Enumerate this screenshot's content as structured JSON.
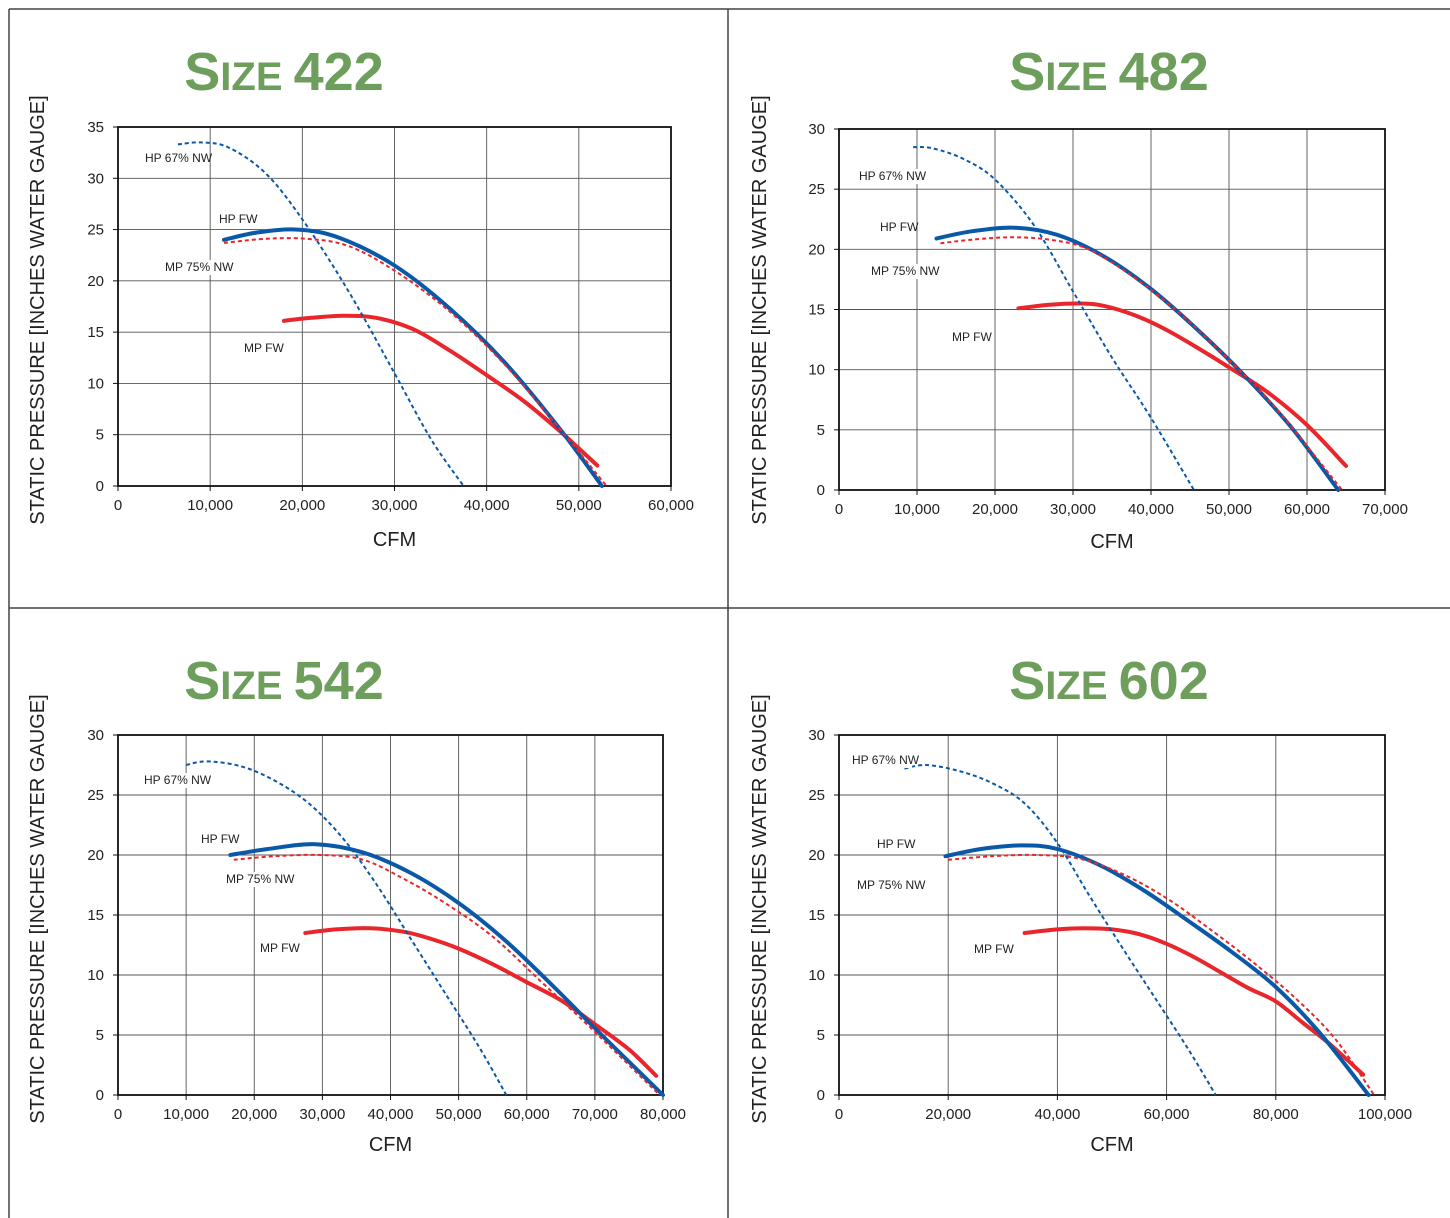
{
  "colors": {
    "title": "#6e9e5c",
    "hp": "#0a59a8",
    "mp": "#e8262b"
  },
  "chart_data": [
    {
      "type": "line",
      "title": "Size 422",
      "xlabel": "CFM",
      "ylabel": "STATIC PRESSURE [INCHES WATER GAUGE]",
      "xlim": [
        0,
        60000
      ],
      "ylim": [
        0,
        35
      ],
      "xticks": [
        0,
        10000,
        20000,
        30000,
        40000,
        50000,
        60000
      ],
      "xtick_labels": [
        "0",
        "10,000",
        "20,000",
        "30,000",
        "40,000",
        "50,000",
        "60,000"
      ],
      "yticks": [
        0,
        5,
        10,
        15,
        20,
        25,
        30,
        35
      ],
      "ytick_labels": [
        "0",
        "5",
        "10",
        "15",
        "20",
        "25",
        "30",
        "35"
      ],
      "grid": true,
      "series": [
        {
          "name": "HP 67% NW",
          "style": "dotted",
          "color": "#0a59a8",
          "x": [
            6500,
            9000,
            12000,
            16000,
            20000,
            25000,
            30000,
            34000,
            37500
          ],
          "y": [
            33.3,
            33.5,
            33,
            30.5,
            26,
            19,
            11,
            4.5,
            0
          ]
        },
        {
          "name": "HP FW",
          "style": "solid",
          "color": "#0a59a8",
          "x": [
            11500,
            15000,
            19500,
            24000,
            30000,
            36000,
            42000,
            48000,
            52500
          ],
          "y": [
            24,
            24.7,
            25,
            24.2,
            21.5,
            17.3,
            12,
            5.5,
            0
          ]
        },
        {
          "name": "MP 75% NW",
          "style": "dotted",
          "color": "#e8262b",
          "x": [
            11500,
            16000,
            20500,
            25000,
            30000,
            36000,
            42000,
            48000,
            53000
          ],
          "y": [
            23.7,
            24.1,
            24.1,
            23.4,
            21,
            17,
            11.8,
            5.5,
            0
          ]
        },
        {
          "name": "MP FW",
          "style": "solid",
          "color": "#e8262b",
          "x": [
            18000,
            21000,
            24500,
            28000,
            32000,
            36000,
            40000,
            44000,
            48000,
            52000
          ],
          "y": [
            16.1,
            16.4,
            16.6,
            16.4,
            15.3,
            13.2,
            10.8,
            8.3,
            5.3,
            2
          ]
        }
      ],
      "annotations": [
        "HP 67% NW",
        "HP FW",
        "MP 75% NW",
        "MP FW"
      ]
    },
    {
      "type": "line",
      "title": "Size 482",
      "xlabel": "CFM",
      "ylabel": "STATIC PRESSURE [INCHES WATER GAUGE]",
      "xlim": [
        0,
        70000
      ],
      "ylim": [
        0,
        30
      ],
      "xticks": [
        0,
        10000,
        20000,
        30000,
        40000,
        50000,
        60000,
        70000
      ],
      "xtick_labels": [
        "0",
        "10,000",
        "20,000",
        "30,000",
        "40,000",
        "50,000",
        "60,000",
        "70,000"
      ],
      "yticks": [
        0,
        5,
        10,
        15,
        20,
        25,
        30
      ],
      "ytick_labels": [
        "0",
        "5",
        "10",
        "15",
        "20",
        "25",
        "30"
      ],
      "grid": true,
      "series": [
        {
          "name": "HP 67% NW",
          "style": "dotted",
          "color": "#0a59a8",
          "x": [
            9500,
            12000,
            16000,
            20000,
            25000,
            30000,
            35000,
            40000,
            45500
          ],
          "y": [
            28.5,
            28.4,
            27.5,
            25.8,
            22,
            16.5,
            11,
            6,
            0
          ]
        },
        {
          "name": "HP FW",
          "style": "solid",
          "color": "#0a59a8",
          "x": [
            12500,
            17000,
            22500,
            28000,
            34000,
            40000,
            46000,
            52000,
            58000,
            64000
          ],
          "y": [
            20.9,
            21.5,
            21.8,
            21.2,
            19.4,
            16.7,
            13.3,
            9.5,
            5.2,
            0
          ]
        },
        {
          "name": "MP 75% NW",
          "style": "dotted",
          "color": "#e8262b",
          "x": [
            13000,
            17000,
            22000,
            27000,
            32000,
            38000,
            44000,
            50000,
            56000,
            64500
          ],
          "y": [
            20.5,
            20.8,
            21,
            20.8,
            20,
            17.6,
            14.5,
            10.8,
            6.8,
            0
          ]
        },
        {
          "name": "MP FW",
          "style": "solid",
          "color": "#e8262b",
          "x": [
            23000,
            27000,
            31000,
            34000,
            38000,
            42000,
            46000,
            50000,
            55000,
            60000,
            65000
          ],
          "y": [
            15.1,
            15.4,
            15.5,
            15.3,
            14.5,
            13.3,
            11.8,
            10.2,
            8.1,
            5.4,
            2
          ]
        }
      ],
      "annotations": [
        "HP 67% NW",
        "HP FW",
        "MP 75% NW",
        "MP FW"
      ]
    },
    {
      "type": "line",
      "title": "Size 542",
      "xlabel": "CFM",
      "ylabel": "STATIC PRESSURE [INCHES WATER GAUGE]",
      "xlim": [
        0,
        80000
      ],
      "ylim": [
        0,
        30
      ],
      "xticks": [
        0,
        10000,
        20000,
        30000,
        40000,
        50000,
        60000,
        70000,
        80000
      ],
      "xtick_labels": [
        "0",
        "10,000",
        "20,000",
        "30,000",
        "40,000",
        "50,000",
        "60,000",
        "70,000",
        "80,000"
      ],
      "yticks": [
        0,
        5,
        10,
        15,
        20,
        25,
        30
      ],
      "ytick_labels": [
        "0",
        "5",
        "10",
        "15",
        "20",
        "25",
        "30"
      ],
      "grid": true,
      "series": [
        {
          "name": "HP 67% NW",
          "style": "dotted",
          "color": "#0a59a8",
          "x": [
            10000,
            13000,
            18000,
            23000,
            28000,
            33000,
            38000,
            43000,
            48000,
            53000,
            57000
          ],
          "y": [
            27.5,
            27.8,
            27.4,
            26.2,
            24.3,
            21.4,
            17.5,
            13,
            8.5,
            4,
            0
          ]
        },
        {
          "name": "HP FW",
          "style": "solid",
          "color": "#0a59a8",
          "x": [
            16500,
            22000,
            29000,
            36000,
            43000,
            50000,
            57000,
            64000,
            71000,
            80000
          ],
          "y": [
            20,
            20.5,
            20.9,
            20.2,
            18.5,
            16,
            12.8,
            9,
            5,
            0
          ]
        },
        {
          "name": "MP 75% NW",
          "style": "dotted",
          "color": "#e8262b",
          "x": [
            17000,
            23000,
            30000,
            36000,
            42000,
            48000,
            55000,
            62000,
            69000,
            79500
          ],
          "y": [
            19.6,
            19.9,
            20,
            19.6,
            18,
            16,
            13.2,
            9.5,
            5.8,
            0
          ]
        },
        {
          "name": "MP FW",
          "style": "solid",
          "color": "#e8262b",
          "x": [
            27500,
            32000,
            37000,
            42000,
            46000,
            50000,
            55000,
            60000,
            65000,
            70000,
            75000,
            79000
          ],
          "y": [
            13.5,
            13.8,
            13.9,
            13.6,
            13,
            12.2,
            10.9,
            9.4,
            7.9,
            5.9,
            3.8,
            1.6
          ]
        }
      ],
      "annotations": [
        "HP 67% NW",
        "HP FW",
        "MP 75% NW",
        "MP FW"
      ]
    },
    {
      "type": "line",
      "title": "Size 602",
      "xlabel": "CFM",
      "ylabel": "STATIC PRESSURE [INCHES WATER GAUGE]",
      "xlim": [
        0,
        100000
      ],
      "ylim": [
        0,
        30
      ],
      "xticks": [
        0,
        20000,
        40000,
        60000,
        80000,
        100000
      ],
      "xtick_labels": [
        "0",
        "20,000",
        "40,000",
        "60,000",
        "80,000",
        "100,000"
      ],
      "yticks": [
        0,
        5,
        10,
        15,
        20,
        25,
        30
      ],
      "ytick_labels": [
        "0",
        "5",
        "10",
        "15",
        "20",
        "25",
        "30"
      ],
      "grid": true,
      "series": [
        {
          "name": "HP 67% NW",
          "style": "dotted",
          "color": "#0a59a8",
          "x": [
            12000,
            16000,
            22000,
            28000,
            34000,
            40000,
            46000,
            52000,
            58000,
            64000,
            69000
          ],
          "y": [
            27.2,
            27.5,
            27,
            26,
            24.3,
            21,
            16.5,
            12.2,
            8,
            3.8,
            0
          ]
        },
        {
          "name": "HP FW",
          "style": "solid",
          "color": "#0a59a8",
          "x": [
            19500,
            26000,
            33500,
            40000,
            48000,
            56000,
            64000,
            72000,
            80000,
            88000,
            97000
          ],
          "y": [
            19.9,
            20.5,
            20.8,
            20.5,
            19.1,
            17,
            14.5,
            11.9,
            9,
            5.2,
            0
          ]
        },
        {
          "name": "MP 75% NW",
          "style": "dotted",
          "color": "#e8262b",
          "x": [
            20000,
            28000,
            36000,
            44000,
            52000,
            60000,
            68000,
            76000,
            84000,
            91000,
            98000
          ],
          "y": [
            19.6,
            19.9,
            20,
            19.7,
            18.4,
            16.4,
            13.8,
            11,
            7.9,
            4.6,
            0
          ]
        },
        {
          "name": "MP FW",
          "style": "solid",
          "color": "#e8262b",
          "x": [
            34000,
            40000,
            45000,
            50000,
            55000,
            60000,
            65000,
            70000,
            75000,
            80000,
            85000,
            90000,
            96000
          ],
          "y": [
            13.5,
            13.8,
            13.9,
            13.8,
            13.4,
            12.6,
            11.5,
            10.2,
            8.9,
            7.8,
            6,
            4.2,
            1.7
          ]
        }
      ],
      "annotations": [
        "HP 67% NW",
        "HP FW",
        "MP 75% NW",
        "MP FW"
      ]
    }
  ]
}
